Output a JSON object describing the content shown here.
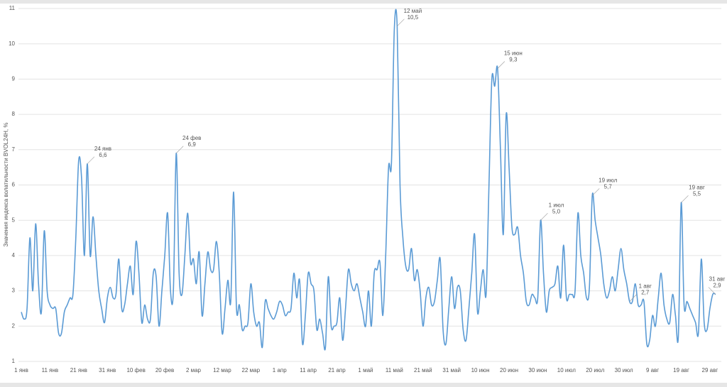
{
  "chart_data": {
    "type": "line",
    "y_label": "Значения индекса волатильности BVOL24H, %",
    "ylim": [
      1,
      11
    ],
    "yticks": [
      1,
      2,
      3,
      4,
      5,
      6,
      7,
      8,
      9,
      10,
      11
    ],
    "grid": true,
    "categories": [
      "1 янв",
      null,
      null,
      null,
      null,
      null,
      null,
      null,
      null,
      null,
      "11 янв",
      null,
      null,
      null,
      null,
      null,
      null,
      null,
      null,
      null,
      "21 янв",
      null,
      null,
      null,
      null,
      null,
      null,
      null,
      null,
      null,
      "31 янв",
      null,
      null,
      null,
      null,
      null,
      null,
      null,
      null,
      null,
      "10 фев",
      null,
      null,
      null,
      null,
      null,
      null,
      null,
      null,
      null,
      "20 фев",
      null,
      null,
      null,
      null,
      null,
      null,
      null,
      null,
      null,
      "2 мар",
      null,
      null,
      null,
      null,
      null,
      null,
      null,
      null,
      null,
      "12 мар",
      null,
      null,
      null,
      null,
      null,
      null,
      null,
      null,
      null,
      "22 мар",
      null,
      null,
      null,
      null,
      null,
      null,
      null,
      null,
      null,
      "1 апр",
      null,
      null,
      null,
      null,
      null,
      null,
      null,
      null,
      null,
      "11 апр",
      null,
      null,
      null,
      null,
      null,
      null,
      null,
      null,
      null,
      "21 апр",
      null,
      null,
      null,
      null,
      null,
      null,
      null,
      null,
      null,
      "1 май",
      null,
      null,
      null,
      null,
      null,
      null,
      null,
      null,
      null,
      "11 май",
      null,
      null,
      null,
      null,
      null,
      null,
      null,
      null,
      null,
      "21 май",
      null,
      null,
      null,
      null,
      null,
      null,
      null,
      null,
      null,
      "31 май",
      null,
      null,
      null,
      null,
      null,
      null,
      null,
      null,
      null,
      "10 июн",
      null,
      null,
      null,
      null,
      null,
      null,
      null,
      null,
      null,
      "20 июн",
      null,
      null,
      null,
      null,
      null,
      null,
      null,
      null,
      null,
      "30 июн",
      null,
      null,
      null,
      null,
      null,
      null,
      null,
      null,
      null,
      "10 июл",
      null,
      null,
      null,
      null,
      null,
      null,
      null,
      null,
      null,
      "20 июл",
      null,
      null,
      null,
      null,
      null,
      null,
      null,
      null,
      null,
      "30 июл",
      null,
      null,
      null,
      null,
      null,
      null,
      null,
      null,
      null,
      "9 авг",
      null,
      null,
      null,
      null,
      null,
      null,
      null,
      null,
      null,
      "19 авг",
      null,
      null,
      null,
      null,
      null,
      null,
      null,
      null,
      null,
      "29 авг",
      null,
      null
    ],
    "series": [
      {
        "name": "BVOL24H",
        "color": "#5b9bd5",
        "values": [
          2.4,
          2.2,
          2.5,
          4.5,
          3.0,
          4.9,
          3.2,
          2.4,
          4.7,
          3.0,
          2.6,
          2.5,
          2.5,
          1.8,
          1.8,
          2.4,
          2.6,
          2.8,
          2.9,
          4.5,
          6.7,
          6.2,
          4.0,
          6.6,
          4.0,
          5.1,
          4.0,
          3.0,
          2.5,
          2.1,
          2.8,
          3.1,
          2.8,
          2.9,
          3.9,
          2.5,
          2.6,
          3.2,
          3.7,
          2.9,
          4.4,
          3.5,
          2.1,
          2.6,
          2.2,
          2.2,
          3.5,
          3.4,
          2.0,
          3.0,
          4.0,
          5.2,
          3.0,
          3.0,
          6.9,
          3.5,
          2.9,
          4.0,
          5.2,
          3.8,
          3.9,
          3.2,
          4.1,
          2.3,
          3.2,
          4.1,
          3.6,
          3.6,
          4.4,
          3.5,
          1.8,
          2.5,
          3.3,
          2.7,
          5.8,
          2.5,
          2.6,
          1.9,
          2.0,
          2.1,
          3.2,
          2.4,
          2.0,
          2.1,
          1.4,
          2.7,
          2.5,
          2.3,
          2.2,
          2.4,
          2.7,
          2.6,
          2.3,
          2.4,
          2.5,
          3.5,
          2.8,
          3.3,
          1.5,
          2.3,
          3.5,
          3.2,
          3.0,
          1.9,
          2.2,
          1.8,
          1.4,
          3.4,
          2.0,
          2.0,
          2.1,
          2.8,
          1.6,
          2.5,
          3.6,
          3.2,
          3.0,
          3.2,
          2.8,
          2.4,
          2.0,
          3.0,
          2.0,
          3.5,
          3.6,
          3.8,
          2.3,
          4.0,
          6.5,
          6.6,
          10.4,
          10.5,
          6.0,
          4.5,
          3.7,
          3.6,
          4.2,
          3.3,
          3.6,
          3.0,
          2.0,
          2.8,
          3.1,
          2.6,
          2.7,
          3.3,
          3.9,
          1.9,
          1.5,
          2.5,
          3.4,
          2.5,
          3.1,
          3.0,
          1.9,
          1.6,
          2.5,
          3.5,
          4.6,
          2.4,
          3.0,
          3.6,
          2.9,
          6.0,
          9.0,
          8.8,
          9.3,
          7.0,
          4.6,
          8.0,
          6.5,
          4.8,
          4.6,
          4.8,
          4.0,
          3.5,
          2.7,
          2.6,
          2.9,
          2.8,
          2.8,
          5.0,
          3.5,
          2.4,
          3.0,
          3.1,
          3.2,
          3.7,
          2.8,
          4.3,
          2.8,
          2.9,
          2.9,
          3.0,
          5.2,
          4.0,
          3.5,
          2.8,
          3.1,
          5.7,
          5.0,
          4.5,
          4.0,
          3.2,
          2.8,
          3.0,
          3.4,
          3.0,
          3.6,
          4.2,
          3.6,
          3.2,
          2.7,
          2.7,
          3.2,
          2.6,
          2.6,
          2.7,
          1.5,
          1.6,
          2.3,
          2.0,
          2.8,
          3.5,
          2.6,
          2.2,
          2.1,
          2.9,
          2.3,
          1.7,
          5.5,
          2.6,
          2.7,
          2.5,
          2.3,
          2.1,
          1.8,
          3.9,
          2.1,
          1.9,
          2.5,
          2.9,
          2.9
        ],
        "point_dates": [
          null,
          null,
          null,
          null,
          null,
          null,
          null,
          null,
          null,
          null,
          null,
          null,
          null,
          null,
          null,
          null,
          null,
          null,
          null,
          null,
          null,
          null,
          null,
          "24 янв",
          null,
          null,
          null,
          null,
          null,
          null,
          null,
          null,
          null,
          null,
          null,
          null,
          null,
          null,
          null,
          null,
          null,
          null,
          null,
          null,
          null,
          null,
          null,
          null,
          null,
          null,
          null,
          null,
          null,
          null,
          "24 фев",
          null,
          null,
          null,
          null,
          null,
          null,
          null,
          null,
          null,
          null,
          null,
          null,
          null,
          null,
          null,
          null,
          null,
          null,
          null,
          null,
          null,
          null,
          null,
          null,
          null,
          null,
          null,
          null,
          null,
          null,
          null,
          null,
          null,
          null,
          null,
          null,
          null,
          null,
          null,
          null,
          null,
          null,
          null,
          null,
          null,
          null,
          null,
          null,
          null,
          null,
          null,
          null,
          null,
          null,
          null,
          null,
          null,
          null,
          null,
          null,
          null,
          null,
          null,
          null,
          null,
          null,
          null,
          null,
          null,
          null,
          null,
          null,
          null,
          null,
          null,
          null,
          "12 май",
          null,
          null,
          null,
          null,
          null,
          null,
          null,
          null,
          null,
          null,
          null,
          null,
          null,
          null,
          null,
          null,
          null,
          null,
          null,
          null,
          null,
          null,
          null,
          null,
          null,
          null,
          null,
          null,
          null,
          null,
          null,
          null,
          null,
          null,
          "15 июн",
          null,
          null,
          null,
          null,
          null,
          null,
          null,
          null,
          null,
          null,
          null,
          null,
          null,
          null,
          "1 июл",
          null,
          null,
          null,
          null,
          null,
          null,
          null,
          null,
          null,
          null,
          null,
          null,
          null,
          null,
          null,
          null,
          null,
          "19 июл",
          null,
          null,
          null,
          null,
          null,
          null,
          null,
          null,
          null,
          null,
          null,
          null,
          "1 авг",
          null,
          null,
          null,
          null,
          null,
          null,
          null,
          null,
          null,
          null,
          null,
          null,
          null,
          null,
          null,
          null,
          null,
          "19 авг",
          null,
          null,
          null,
          null,
          null,
          null,
          null,
          null,
          null,
          null,
          null,
          "31 авг"
        ],
        "value_labels": [
          null,
          null,
          null,
          null,
          null,
          null,
          null,
          null,
          null,
          null,
          null,
          null,
          null,
          null,
          null,
          null,
          null,
          null,
          null,
          null,
          null,
          null,
          null,
          "6,6",
          null,
          null,
          null,
          null,
          null,
          null,
          null,
          null,
          null,
          null,
          null,
          null,
          null,
          null,
          null,
          null,
          null,
          null,
          null,
          null,
          null,
          null,
          null,
          null,
          null,
          null,
          null,
          null,
          null,
          null,
          "6,9",
          null,
          null,
          null,
          null,
          null,
          null,
          null,
          null,
          null,
          null,
          null,
          null,
          null,
          null,
          null,
          null,
          null,
          null,
          null,
          null,
          null,
          null,
          null,
          null,
          null,
          null,
          null,
          null,
          null,
          null,
          null,
          null,
          null,
          null,
          null,
          null,
          null,
          null,
          null,
          null,
          null,
          null,
          null,
          null,
          null,
          null,
          null,
          null,
          null,
          null,
          null,
          null,
          null,
          null,
          null,
          null,
          null,
          null,
          null,
          null,
          null,
          null,
          null,
          null,
          null,
          null,
          null,
          null,
          null,
          null,
          null,
          null,
          null,
          null,
          null,
          null,
          "10,5",
          null,
          null,
          null,
          null,
          null,
          null,
          null,
          null,
          null,
          null,
          null,
          null,
          null,
          null,
          null,
          null,
          null,
          null,
          null,
          null,
          null,
          null,
          null,
          null,
          null,
          null,
          null,
          null,
          null,
          null,
          null,
          null,
          null,
          null,
          "9,3",
          null,
          null,
          null,
          null,
          null,
          null,
          null,
          null,
          null,
          null,
          null,
          null,
          null,
          null,
          "5,0",
          null,
          null,
          null,
          null,
          null,
          null,
          null,
          null,
          null,
          null,
          null,
          null,
          null,
          null,
          null,
          null,
          null,
          "5,7",
          null,
          null,
          null,
          null,
          null,
          null,
          null,
          null,
          null,
          null,
          null,
          null,
          "2,7",
          null,
          null,
          null,
          null,
          null,
          null,
          null,
          null,
          null,
          null,
          null,
          null,
          null,
          null,
          null,
          null,
          null,
          "5,5",
          null,
          null,
          null,
          null,
          null,
          null,
          null,
          null,
          null,
          null,
          null,
          "2,9"
        ]
      }
    ]
  }
}
